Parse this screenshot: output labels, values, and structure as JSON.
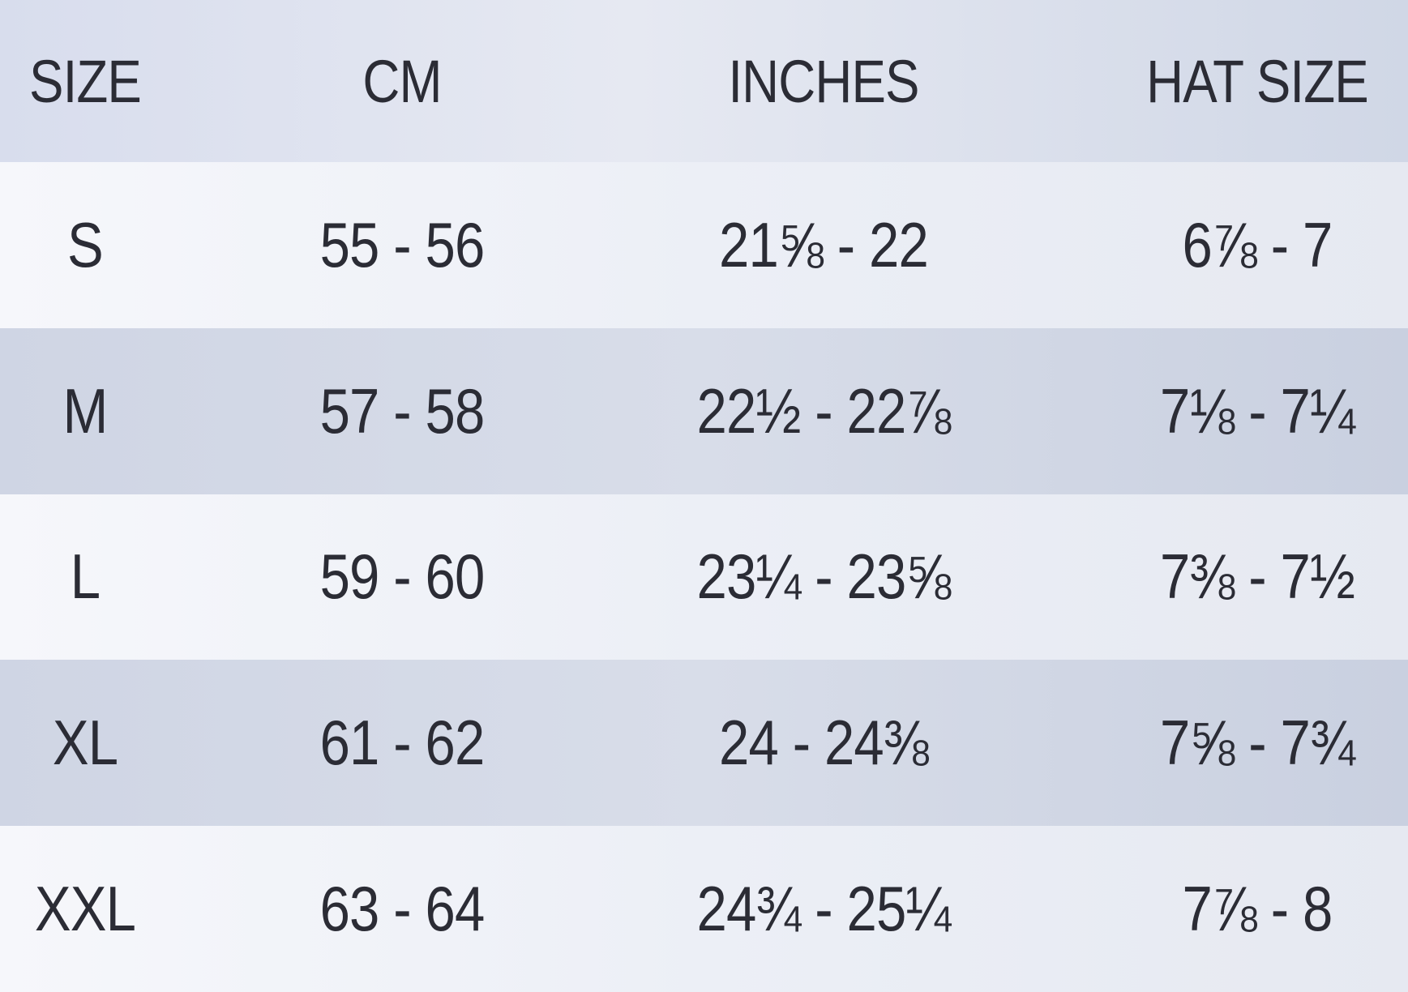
{
  "headers": [
    "SIZE",
    "CM",
    "INCHES",
    "HAT SIZE"
  ],
  "rows": [
    [
      "S",
      "55 - 56",
      "21⅝ - 22",
      "6⅞ - 7"
    ],
    [
      "M",
      "57 - 58",
      "22½ - 22⅞",
      "7⅛ - 7¼"
    ],
    [
      "L",
      "59 - 60",
      "23¼ - 23⅝",
      "7⅜ - 7½"
    ],
    [
      "XL",
      "61 - 62",
      "24 - 24⅜",
      "7⅝ - 7¾"
    ],
    [
      "XXL",
      "63 - 64",
      "24¾ - 25¼",
      "7⅞ - 8"
    ]
  ]
}
